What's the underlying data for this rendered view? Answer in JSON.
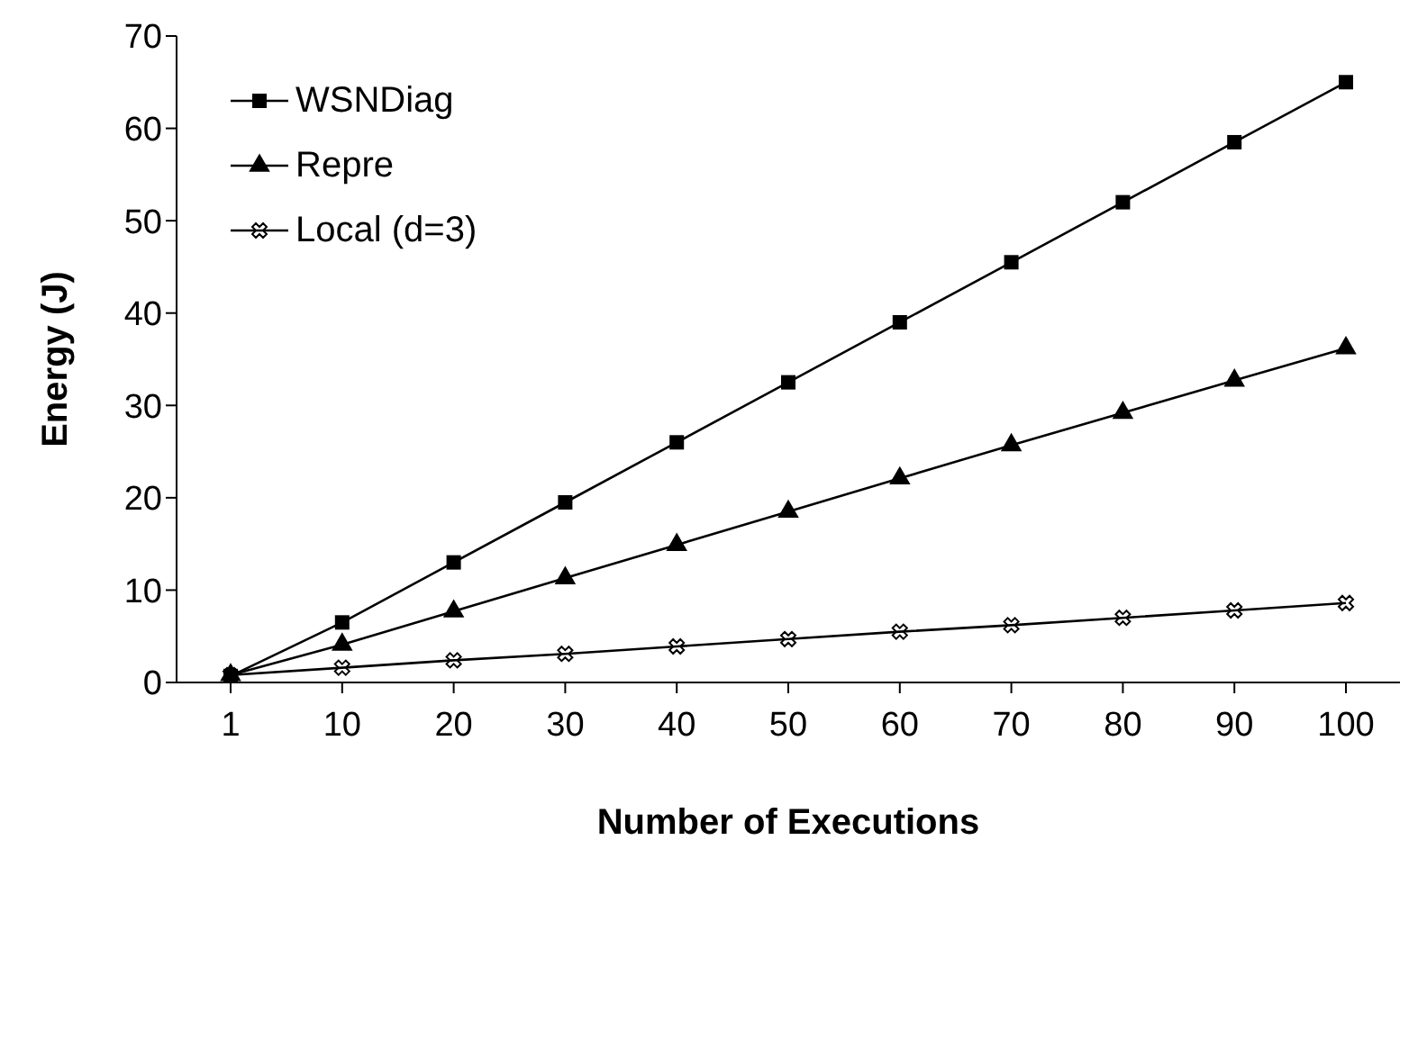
{
  "chart_data": {
    "type": "line",
    "xlabel": "Number of Executions",
    "ylabel": "Energy (J)",
    "categories": [
      "1",
      "10",
      "20",
      "30",
      "40",
      "50",
      "60",
      "70",
      "80",
      "90",
      "100"
    ],
    "series": [
      {
        "name": "WSNDiag",
        "color": "#000000",
        "marker": "square",
        "values": [
          0.7,
          6.5,
          13,
          19.5,
          26,
          32.5,
          39,
          45.5,
          52,
          58.5,
          65
        ]
      },
      {
        "name": "Repre",
        "color": "#000000",
        "marker": "triangle",
        "values": [
          0.8,
          4.1,
          7.7,
          11.3,
          14.9,
          18.5,
          22.1,
          25.7,
          29.2,
          32.7,
          36.2
        ]
      },
      {
        "name": "Local (d=3)",
        "color": "#000000",
        "marker": "cross",
        "values": [
          0.8,
          1.6,
          2.4,
          3.1,
          3.9,
          4.7,
          5.5,
          6.2,
          7.0,
          7.8,
          8.6
        ]
      }
    ],
    "ylim": [
      0,
      70
    ],
    "yticks": [
      0,
      10,
      20,
      30,
      40,
      50,
      60,
      70
    ],
    "grid": false,
    "legend": "top left"
  }
}
